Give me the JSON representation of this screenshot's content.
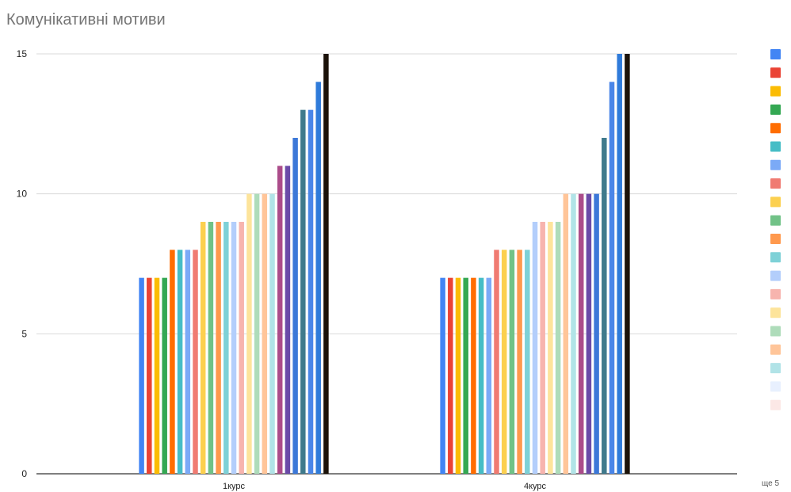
{
  "chart_data": {
    "type": "bar",
    "title": "Комунікативні мотиви",
    "categories": [
      "1курс",
      "4курс"
    ],
    "ylim": [
      0,
      15
    ],
    "yticks": [
      0,
      5,
      10,
      15
    ],
    "grid": true,
    "legend_position": "right",
    "legend_more": "ще 5",
    "series": [
      {
        "color": "#4285f4",
        "values": [
          7,
          7
        ]
      },
      {
        "color": "#ea4335",
        "values": [
          7,
          7
        ]
      },
      {
        "color": "#fbbc04",
        "values": [
          7,
          7
        ]
      },
      {
        "color": "#34a853",
        "values": [
          7,
          7
        ]
      },
      {
        "color": "#ff6d01",
        "values": [
          8,
          7
        ]
      },
      {
        "color": "#46bdc6",
        "values": [
          8,
          7
        ]
      },
      {
        "color": "#7baaf7",
        "values": [
          8,
          7
        ]
      },
      {
        "color": "#f07b72",
        "values": [
          8,
          8
        ]
      },
      {
        "color": "#fcd04f",
        "values": [
          9,
          8
        ]
      },
      {
        "color": "#71c287",
        "values": [
          9,
          8
        ]
      },
      {
        "color": "#ff994d",
        "values": [
          9,
          8
        ]
      },
      {
        "color": "#7ed1d7",
        "values": [
          9,
          8
        ]
      },
      {
        "color": "#b3cefb",
        "values": [
          9,
          9
        ]
      },
      {
        "color": "#f7b4ae",
        "values": [
          9,
          9
        ]
      },
      {
        "color": "#fde49b",
        "values": [
          10,
          9
        ]
      },
      {
        "color": "#aedcba",
        "values": [
          10,
          9
        ]
      },
      {
        "color": "#ffc599",
        "values": [
          10,
          10
        ]
      },
      {
        "color": "#b1e3e7",
        "values": [
          10,
          10
        ]
      },
      {
        "color": "#ab4c8a",
        "values": [
          11,
          10
        ]
      },
      {
        "color": "#6a4aa8",
        "values": [
          11,
          10
        ]
      },
      {
        "color": "#3c78d8",
        "values": [
          12,
          10
        ]
      },
      {
        "color": "#3f7a8c",
        "values": [
          13,
          12
        ]
      },
      {
        "color": "#4a86e8",
        "values": [
          13,
          14
        ]
      },
      {
        "color": "#2f7bda",
        "values": [
          14,
          15
        ]
      },
      {
        "color": "#1b1209",
        "values": [
          15,
          15
        ]
      }
    ],
    "legend_swatches": [
      "#4285f4",
      "#ea4335",
      "#fbbc04",
      "#34a853",
      "#ff6d01",
      "#46bdc6",
      "#7baaf7",
      "#f07b72",
      "#fcd04f",
      "#71c287",
      "#ff994d",
      "#7ed1d7",
      "#b3cefb",
      "#f7b4ae",
      "#fde49b",
      "#aedcba",
      "#ffc599",
      "#b1e3e7",
      "#e8f0fe",
      "#fce8e6"
    ]
  }
}
